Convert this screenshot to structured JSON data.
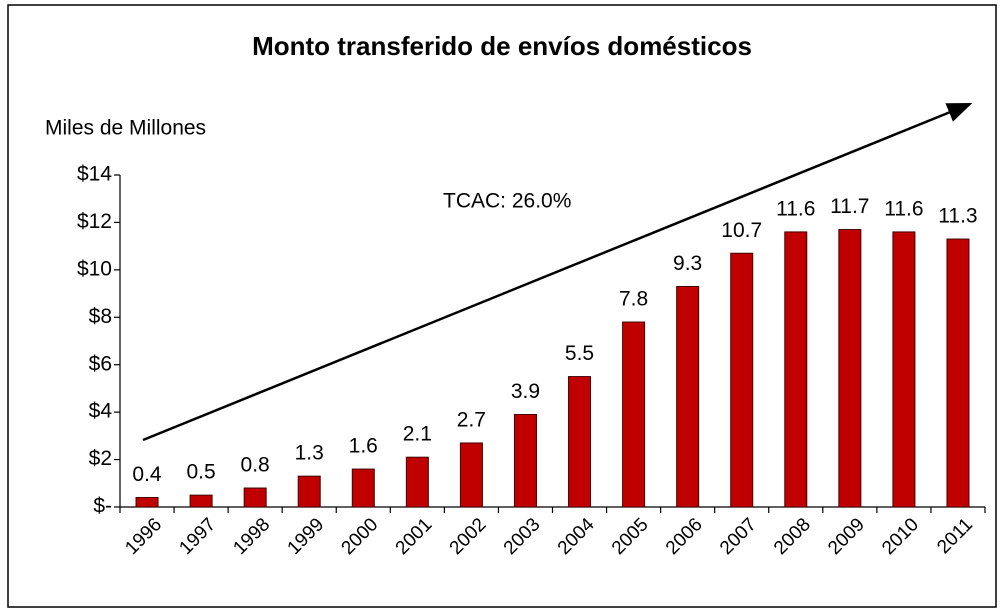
{
  "chart_data": {
    "type": "bar",
    "title": "Monto transferido de envíos domésticos",
    "y_axis_label": "Miles de Millones",
    "annotation": "TCAC: 26.0%",
    "categories": [
      "1996",
      "1997",
      "1998",
      "1999",
      "2000",
      "2001",
      "2002",
      "2003",
      "2004",
      "2005",
      "2006",
      "2007",
      "2008",
      "2009",
      "2010",
      "2011"
    ],
    "values": [
      0.4,
      0.5,
      0.8,
      1.3,
      1.6,
      2.1,
      2.7,
      3.9,
      5.5,
      7.8,
      9.3,
      10.7,
      11.6,
      11.7,
      11.6,
      11.3
    ],
    "color": "#c00000",
    "ylim": [
      0,
      14
    ],
    "yticks": [
      {
        "value": 0,
        "label": "$-"
      },
      {
        "value": 2,
        "label": "$2"
      },
      {
        "value": 4,
        "label": "$4"
      },
      {
        "value": 6,
        "label": "$6"
      },
      {
        "value": 8,
        "label": "$8"
      },
      {
        "value": 10,
        "label": "$10"
      },
      {
        "value": 12,
        "label": "$12"
      },
      {
        "value": 14,
        "label": "$14"
      }
    ],
    "grid": false
  }
}
